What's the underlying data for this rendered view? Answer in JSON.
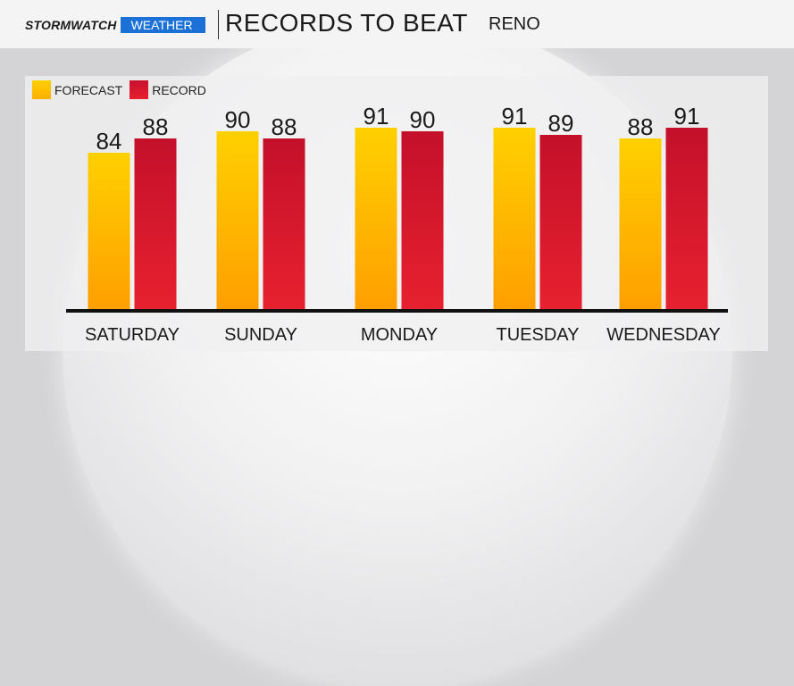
{
  "header": {
    "brand_storm": "STORMWATCH",
    "brand_weather": "WEATHER",
    "title": "RECORDS TO BEAT",
    "location": "RENO"
  },
  "chart_data": {
    "type": "bar",
    "title": "RECORDS TO BEAT",
    "subtitle": "RENO",
    "categories": [
      "SATURDAY",
      "SUNDAY",
      "MONDAY",
      "TUESDAY",
      "WEDNESDAY"
    ],
    "series": [
      {
        "name": "FORECAST",
        "values": [
          84,
          90,
          91,
          91,
          88
        ],
        "color": "#ffc400"
      },
      {
        "name": "RECORD",
        "values": [
          88,
          88,
          90,
          89,
          91
        ],
        "color": "#d0142c"
      }
    ],
    "xlabel": "",
    "ylabel": "",
    "grid": false,
    "legend": "top-left",
    "data_labels": true
  },
  "colors": {
    "forecast_top": "#ffd000",
    "forecast_bottom": "#ff9f00",
    "record_top": "#c4102a",
    "record_bottom": "#e7212f",
    "brand_blue": "#1b71d6"
  }
}
